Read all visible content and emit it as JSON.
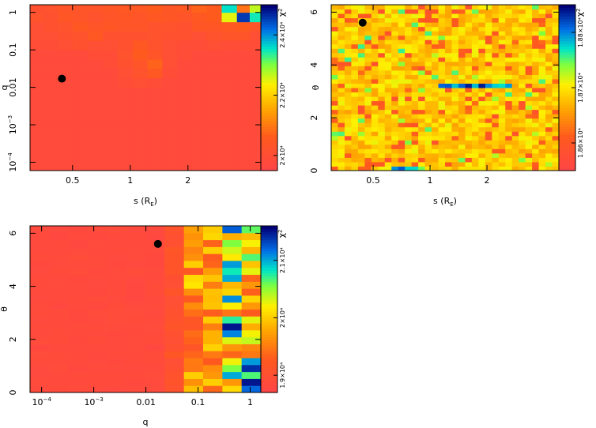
{
  "chart_data": [
    {
      "id": "panel-s-q",
      "type": "heatmap",
      "title": "",
      "xlabel": "s (R_E)",
      "ylabel": "q",
      "x_scale": "log",
      "y_scale": "log",
      "xlim": [
        0.3,
        4.8
      ],
      "ylim": [
        6e-05,
        1.6
      ],
      "x_ticks": [
        {
          "value": 0.5,
          "label": "0.5"
        },
        {
          "value": 1,
          "label": "1"
        },
        {
          "value": 2,
          "label": "2"
        }
      ],
      "y_ticks": [
        {
          "value": 1,
          "label": "1"
        },
        {
          "value": 0.1,
          "label": "0.1"
        },
        {
          "value": 0.01,
          "label": "0.01"
        },
        {
          "value": 0.001,
          "label": "10",
          "exp": "−3"
        },
        {
          "value": 0.0001,
          "label": "10",
          "exp": "−4"
        }
      ],
      "best_fit": {
        "x": 0.44,
        "y": 0.017
      },
      "colorbar": {
        "title": "χ²",
        "tick_labels": [
          "2.4×10⁴",
          "2.2×10⁴",
          "2×10⁴"
        ],
        "tick_values": [
          24000,
          22000,
          20000
        ],
        "range": [
          19500,
          25000
        ]
      },
      "grid": {
        "x_edges": [
          0.3,
          0.36,
          0.42,
          0.5,
          0.6,
          0.72,
          0.86,
          1.03,
          1.23,
          1.47,
          1.76,
          2.1,
          2.5,
          3.0,
          3.6,
          4.2,
          4.8
        ],
        "y_edges": [
          6e-05,
          0.001,
          0.005,
          0.01,
          0.018,
          0.032,
          0.056,
          0.1,
          0.18,
          0.32,
          0.56,
          1.0,
          1.6
        ],
        "values": [
          [
            19800,
            19800,
            19800,
            19800,
            19800,
            19800,
            19800,
            19800,
            19800,
            19800,
            19800,
            19800,
            19800,
            19800,
            19800,
            19800
          ],
          [
            19800,
            19800,
            19800,
            19800,
            19800,
            19800,
            19800,
            19800,
            19800,
            19800,
            19800,
            19800,
            19800,
            19800,
            19800,
            19800
          ],
          [
            19800,
            19800,
            19800,
            19800,
            19800,
            19800,
            19800,
            19800,
            19800,
            19800,
            19800,
            19800,
            19800,
            19800,
            19800,
            19800
          ],
          [
            19800,
            19800,
            19800,
            19800,
            19800,
            19800,
            19900,
            20000,
            19900,
            19800,
            19800,
            19800,
            19800,
            19800,
            19800,
            19800
          ],
          [
            19800,
            19800,
            19800,
            19800,
            19800,
            19800,
            20000,
            20200,
            20500,
            19900,
            19800,
            19800,
            19800,
            19800,
            19800,
            19800
          ],
          [
            19800,
            19800,
            19800,
            19800,
            19800,
            19900,
            20100,
            20300,
            20700,
            20000,
            19800,
            19800,
            19800,
            19800,
            19800,
            19800
          ],
          [
            19800,
            19800,
            19800,
            19800,
            19900,
            19900,
            20200,
            20600,
            20300,
            20000,
            19900,
            19800,
            19800,
            19800,
            19800,
            19800
          ],
          [
            19900,
            19900,
            20000,
            20100,
            20000,
            20000,
            20100,
            20500,
            20200,
            20000,
            19900,
            19900,
            20000,
            19900,
            19900,
            19900
          ],
          [
            20000,
            20000,
            20100,
            20200,
            20500,
            20100,
            20100,
            20100,
            20200,
            20100,
            20100,
            20000,
            20200,
            20300,
            20300,
            20000
          ],
          [
            20000,
            20100,
            20200,
            20500,
            20300,
            20400,
            20300,
            20300,
            20200,
            20200,
            20100,
            20400,
            20400,
            20500,
            20600,
            20300
          ],
          [
            20200,
            20100,
            20400,
            20300,
            20200,
            20300,
            20400,
            20300,
            20500,
            20400,
            20300,
            20500,
            20600,
            22500,
            24600,
            23500
          ],
          [
            20100,
            20200,
            20300,
            20300,
            20300,
            20400,
            20500,
            20500,
            20600,
            20400,
            20500,
            20700,
            20600,
            23600,
            20900,
            22700
          ]
        ]
      }
    },
    {
      "id": "panel-s-theta",
      "type": "heatmap",
      "title": "",
      "xlabel": "s (R_E)",
      "ylabel": "θ",
      "x_scale": "log",
      "y_scale": "linear",
      "xlim": [
        0.3,
        4.8
      ],
      "ylim": [
        0,
        6.28
      ],
      "x_ticks": [
        {
          "value": 0.5,
          "label": "0.5"
        },
        {
          "value": 1,
          "label": "1"
        },
        {
          "value": 2,
          "label": "2"
        }
      ],
      "y_ticks": [
        {
          "value": 0,
          "label": "0"
        },
        {
          "value": 2,
          "label": "2"
        },
        {
          "value": 4,
          "label": "4"
        },
        {
          "value": 6,
          "label": "6"
        }
      ],
      "best_fit": {
        "x": 0.44,
        "y": 5.6
      },
      "colorbar": {
        "title": "χ²",
        "tick_labels": [
          "1.88×10⁴",
          "1.87×10⁴",
          "1.86×10⁴"
        ],
        "tick_values": [
          18800,
          18700,
          18600
        ],
        "range": [
          18550,
          18850
        ]
      },
      "grid": {
        "type": "generated-noise",
        "nx": 34,
        "ny": 38
      }
    },
    {
      "id": "panel-q-theta",
      "type": "heatmap",
      "title": "",
      "xlabel": "q",
      "ylabel": "θ",
      "x_scale": "log",
      "y_scale": "linear",
      "xlim": [
        6e-05,
        1.6
      ],
      "ylim": [
        0,
        6.28
      ],
      "x_ticks": [
        {
          "value": 0.0001,
          "label": "10",
          "exp": "−4"
        },
        {
          "value": 0.001,
          "label": "10",
          "exp": "−3"
        },
        {
          "value": 0.01,
          "label": "0.01"
        },
        {
          "value": 0.1,
          "label": "0.1"
        },
        {
          "value": 1,
          "label": "1"
        }
      ],
      "y_ticks": [
        {
          "value": 0,
          "label": "0"
        },
        {
          "value": 2,
          "label": "2"
        },
        {
          "value": 4,
          "label": "4"
        },
        {
          "value": 6,
          "label": "6"
        }
      ],
      "best_fit": {
        "x": 0.017,
        "y": 5.6
      },
      "colorbar": {
        "title": "χ²",
        "tick_labels": [
          "2.1×10⁴",
          "2×10⁴",
          "1.9×10⁴"
        ],
        "tick_values": [
          21000,
          20000,
          19000
        ],
        "range": [
          18700,
          21600
        ]
      },
      "grid": {
        "type": "generated-q-theta",
        "nx": 12,
        "ny": 24
      }
    }
  ]
}
